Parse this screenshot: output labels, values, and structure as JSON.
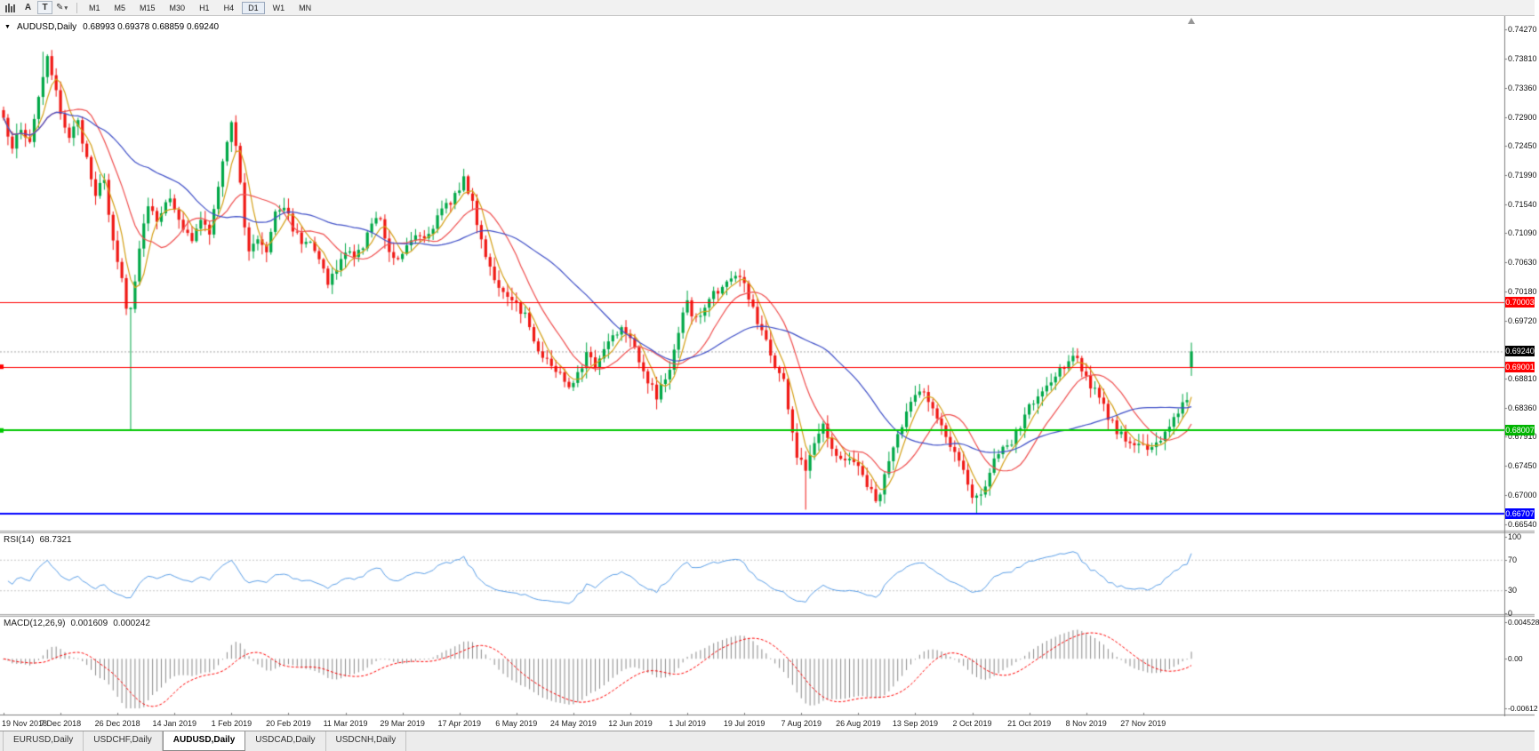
{
  "toolbar": {
    "label_tool": "A",
    "text_tool": "T",
    "timeframes": [
      "M1",
      "M5",
      "M15",
      "M30",
      "H1",
      "H4",
      "D1",
      "W1",
      "MN"
    ],
    "active_timeframe": "D1"
  },
  "icons": {
    "chart_menu": "▼",
    "pencil": "✎",
    "caret": "▾"
  },
  "chart_header": {
    "symbol": "AUDUSD,Daily",
    "ohlc_text": "0.68993 0.69378 0.68859 0.69240"
  },
  "price_axis": {
    "labels": [
      "0.74270",
      "0.73810",
      "0.73360",
      "0.72900",
      "0.72450",
      "0.71990",
      "0.71540",
      "0.71090",
      "0.70630",
      "0.70180",
      "0.69720",
      "0.68810",
      "0.68360",
      "0.67910",
      "0.67450",
      "0.67000",
      "0.66540"
    ],
    "boxes": [
      {
        "text": "0.70003",
        "bg": "#ff0000"
      },
      {
        "text": "0.69240",
        "bg": "#000000"
      },
      {
        "text": "0.69001",
        "bg": "#ff0000"
      },
      {
        "text": "0.68007",
        "bg": "#00b400"
      },
      {
        "text": "0.66707",
        "bg": "#0000ff"
      }
    ]
  },
  "rsi": {
    "title": "RSI(14)",
    "value": "68.7321",
    "axis_labels": [
      "100",
      "70",
      "30",
      "0"
    ],
    "axis_values": [
      100,
      70,
      30,
      0
    ],
    "dashed_levels": [
      70,
      30
    ]
  },
  "macd": {
    "title": "MACD(12,26,9)",
    "value": "0.001609",
    "signal_value": "0.000242",
    "axis_labels": [
      "0.004528",
      "0.00",
      "-0.00612"
    ],
    "axis_values": [
      0.004528,
      0,
      -0.00612
    ],
    "range": [
      -0.00612,
      0.004528
    ]
  },
  "tabs": {
    "items": [
      "EURUSD,Daily",
      "USDCHF,Daily",
      "AUDUSD,Daily",
      "USDCAD,Daily",
      "USDCNH,Daily"
    ],
    "active": "AUDUSD,Daily"
  },
  "colors": {
    "candle_up": "#00a847",
    "candle_down": "#f01814",
    "rsi_line": "#5b9fe8",
    "macd_histogram": "#8a8a8a",
    "macd_signal": "#ff0000",
    "axis_line": "#808080",
    "panel_divider": "#a8a8a8"
  },
  "chart_data": {
    "type": "candlestick",
    "symbol": "AUDUSD",
    "timeframe": "Daily",
    "last_bar": {
      "open": 0.68993,
      "high": 0.69378,
      "low": 0.68859,
      "close": 0.6924
    },
    "price_range": [
      0.6654,
      0.7427
    ],
    "bars_count": 272,
    "bars_per_label": 13,
    "x_labels": [
      "19 Nov 2018",
      "7 Dec 2018",
      "26 Dec 2018",
      "14 Jan 2019",
      "1 Feb 2019",
      "20 Feb 2019",
      "11 Mar 2019",
      "29 Mar 2019",
      "17 Apr 2019",
      "6 May 2019",
      "24 May 2019",
      "12 Jun 2019",
      "1 Jul 2019",
      "19 Jul 2019",
      "7 Aug 2019",
      "26 Aug 2019",
      "13 Sep 2019",
      "2 Oct 2019",
      "21 Oct 2019",
      "8 Nov 2019",
      "27 Nov 2019"
    ],
    "close_anchors": [
      [
        0,
        0.7282
      ],
      [
        2,
        0.7248
      ],
      [
        4,
        0.7268
      ],
      [
        6,
        0.7252
      ],
      [
        8,
        0.7325
      ],
      [
        10,
        0.7378
      ],
      [
        11,
        0.7352
      ],
      [
        13,
        0.7298
      ],
      [
        15,
        0.7262
      ],
      [
        17,
        0.7278
      ],
      [
        19,
        0.7228
      ],
      [
        21,
        0.7172
      ],
      [
        23,
        0.7188
      ],
      [
        25,
        0.7092
      ],
      [
        27,
        0.704
      ],
      [
        28,
        0.6992
      ],
      [
        29,
        0.6992
      ],
      [
        31,
        0.7088
      ],
      [
        33,
        0.7158
      ],
      [
        35,
        0.7128
      ],
      [
        37,
        0.7162
      ],
      [
        39,
        0.7152
      ],
      [
        41,
        0.7118
      ],
      [
        43,
        0.7092
      ],
      [
        45,
        0.7132
      ],
      [
        47,
        0.7108
      ],
      [
        49,
        0.7178
      ],
      [
        51,
        0.7255
      ],
      [
        52,
        0.7288
      ],
      [
        53,
        0.7248
      ],
      [
        55,
        0.7118
      ],
      [
        56,
        0.7078
      ],
      [
        58,
        0.7102
      ],
      [
        60,
        0.7082
      ],
      [
        62,
        0.7148
      ],
      [
        64,
        0.7152
      ],
      [
        66,
        0.7118
      ],
      [
        68,
        0.7092
      ],
      [
        70,
        0.7102
      ],
      [
        72,
        0.7072
      ],
      [
        74,
        0.7028
      ],
      [
        76,
        0.7052
      ],
      [
        78,
        0.7082
      ],
      [
        80,
        0.7068
      ],
      [
        82,
        0.7092
      ],
      [
        84,
        0.7122
      ],
      [
        86,
        0.7132
      ],
      [
        88,
        0.7082
      ],
      [
        90,
        0.7068
      ],
      [
        92,
        0.7092
      ],
      [
        94,
        0.7112
      ],
      [
        96,
        0.7102
      ],
      [
        98,
        0.7122
      ],
      [
        100,
        0.7142
      ],
      [
        102,
        0.7158
      ],
      [
        104,
        0.7182
      ],
      [
        105,
        0.7198
      ],
      [
        107,
        0.7152
      ],
      [
        109,
        0.7098
      ],
      [
        111,
        0.7058
      ],
      [
        113,
        0.7022
      ],
      [
        115,
        0.7002
      ],
      [
        117,
        0.6998
      ],
      [
        119,
        0.6982
      ],
      [
        121,
        0.6942
      ],
      [
        123,
        0.6918
      ],
      [
        125,
        0.6902
      ],
      [
        127,
        0.6888
      ],
      [
        129,
        0.6872
      ],
      [
        131,
        0.6892
      ],
      [
        133,
        0.6918
      ],
      [
        135,
        0.6902
      ],
      [
        137,
        0.6928
      ],
      [
        139,
        0.6952
      ],
      [
        141,
        0.6962
      ],
      [
        143,
        0.6952
      ],
      [
        145,
        0.6912
      ],
      [
        147,
        0.6878
      ],
      [
        149,
        0.6852
      ],
      [
        151,
        0.6882
      ],
      [
        153,
        0.6922
      ],
      [
        155,
        0.6982
      ],
      [
        156,
        0.6998
      ],
      [
        158,
        0.6972
      ],
      [
        160,
        0.6992
      ],
      [
        162,
        0.7018
      ],
      [
        164,
        0.7022
      ],
      [
        166,
        0.7038
      ],
      [
        168,
        0.7042
      ],
      [
        170,
        0.7008
      ],
      [
        172,
        0.6972
      ],
      [
        174,
        0.6942
      ],
      [
        176,
        0.6902
      ],
      [
        178,
        0.6878
      ],
      [
        180,
        0.6798
      ],
      [
        181,
        0.6758
      ],
      [
        183,
        0.6742
      ],
      [
        185,
        0.6788
      ],
      [
        187,
        0.6812
      ],
      [
        189,
        0.6778
      ],
      [
        191,
        0.6752
      ],
      [
        193,
        0.6762
      ],
      [
        195,
        0.6742
      ],
      [
        197,
        0.6718
      ],
      [
        199,
        0.6688
      ],
      [
        201,
        0.6728
      ],
      [
        203,
        0.6772
      ],
      [
        205,
        0.6808
      ],
      [
        207,
        0.6842
      ],
      [
        209,
        0.6868
      ],
      [
        211,
        0.6848
      ],
      [
        213,
        0.6818
      ],
      [
        215,
        0.6792
      ],
      [
        217,
        0.6762
      ],
      [
        219,
        0.6732
      ],
      [
        221,
        0.6702
      ],
      [
        222,
        0.6698
      ],
      [
        224,
        0.6718
      ],
      [
        226,
        0.6752
      ],
      [
        228,
        0.6768
      ],
      [
        230,
        0.6782
      ],
      [
        232,
        0.6808
      ],
      [
        234,
        0.6838
      ],
      [
        236,
        0.6852
      ],
      [
        238,
        0.6868
      ],
      [
        240,
        0.6882
      ],
      [
        242,
        0.6902
      ],
      [
        244,
        0.6922
      ],
      [
        246,
        0.6898
      ],
      [
        248,
        0.6872
      ],
      [
        250,
        0.6848
      ],
      [
        252,
        0.6822
      ],
      [
        254,
        0.6802
      ],
      [
        256,
        0.6782
      ],
      [
        258,
        0.6772
      ],
      [
        260,
        0.6782
      ],
      [
        262,
        0.6768
      ],
      [
        264,
        0.6788
      ],
      [
        266,
        0.6812
      ],
      [
        268,
        0.6832
      ],
      [
        270,
        0.6852
      ],
      [
        271,
        0.6924
      ]
    ],
    "special_bars": [
      {
        "i": 9,
        "high": 0.7392
      },
      {
        "i": 29,
        "open": 0.699,
        "close": 0.6992,
        "low": 0.6801
      },
      {
        "i": 183,
        "low": 0.6677
      },
      {
        "i": 222,
        "low": 0.66707
      },
      {
        "i": 271,
        "open": 0.68993,
        "high": 0.69378,
        "low": 0.68859,
        "close": 0.6924
      }
    ],
    "horizontal_lines": [
      {
        "price": 0.6924,
        "color": "#a8a8a8",
        "width": 1,
        "style": "dashed"
      },
      {
        "price": 0.70003,
        "color": "#ff0000",
        "width": 1,
        "style": "solid"
      },
      {
        "price": 0.69001,
        "color": "#ff0000",
        "width": 1,
        "style": "solid",
        "edge_marker": true
      },
      {
        "price": 0.68007,
        "color": "#00c800",
        "width": 2,
        "style": "solid",
        "edge_marker": true
      },
      {
        "price": 0.66707,
        "color": "#0000ff",
        "width": 2,
        "style": "solid"
      }
    ],
    "moving_averages": [
      {
        "period": 5,
        "color": "#d4a017"
      },
      {
        "period": 13,
        "color": "#f05050"
      },
      {
        "period": 34,
        "color": "#4050c8"
      }
    ],
    "indicators": {
      "rsi": {
        "period": 14,
        "current": 68.7321
      },
      "macd": {
        "fast": 12,
        "slow": 26,
        "signal": 9,
        "current": 0.001609,
        "signal_current": 0.000242
      }
    }
  }
}
